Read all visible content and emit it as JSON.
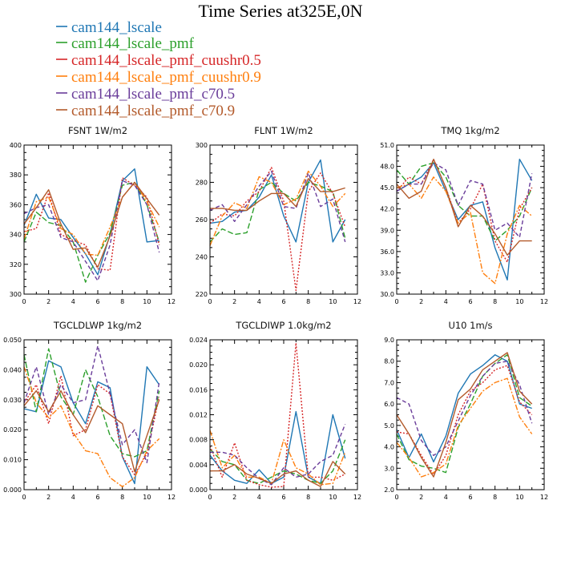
{
  "page_title": "Time Series at325E,0N",
  "legend": [
    {
      "name": "cam144_lscale",
      "color": "#1f77b4"
    },
    {
      "name": "cam144_lscale_pmf",
      "color": "#2ca02c"
    },
    {
      "name": "cam144_lscale_pmf_cuushr0.5",
      "color": "#d62728"
    },
    {
      "name": "cam144_lscale_pmf_cuushr0.9",
      "color": "#ff7f0e"
    },
    {
      "name": "cam144_lscale_pmf_c70.5",
      "color": "#6a3d9a"
    },
    {
      "name": "cam144_lscale_pmf_c70.9",
      "color": "#b35a2b"
    }
  ],
  "chart_data": [
    {
      "type": "line",
      "title": "FSNT   1W/m2",
      "xlim": [
        0,
        12
      ],
      "xticks": [
        "0",
        "2",
        "4",
        "6",
        "8",
        "10",
        "12"
      ],
      "ylim": [
        300,
        400
      ],
      "yticks": [
        "300",
        "320",
        "340",
        "360",
        "380",
        "400"
      ],
      "x": [
        0,
        1,
        2,
        3,
        4,
        5,
        6,
        7,
        8,
        9,
        10,
        11
      ],
      "series": [
        {
          "name": "cam144_lscale",
          "dash": "solid",
          "values": [
            346,
            367,
            351,
            350,
            338,
            327,
            313,
            340,
            376,
            384,
            335,
            336
          ]
        },
        {
          "name": "cam144_lscale_pmf",
          "dash": "longdash",
          "values": [
            335,
            355,
            348,
            346,
            335,
            308,
            326,
            341,
            373,
            375,
            360,
            335
          ]
        },
        {
          "name": "cam144_lscale_pmf_cuushr0.5",
          "dash": "dot",
          "values": [
            342,
            344,
            368,
            340,
            336,
            333,
            317,
            316,
            378,
            373,
            365,
            333
          ]
        },
        {
          "name": "cam144_lscale_pmf_cuushr0.9",
          "dash": "dashdot",
          "values": [
            337,
            362,
            365,
            344,
            340,
            327,
            326,
            345,
            365,
            375,
            362,
            345
          ]
        },
        {
          "name": "cam144_lscale_pmf_c70.5",
          "dash": "dash",
          "values": [
            354,
            358,
            360,
            338,
            335,
            322,
            309,
            333,
            376,
            373,
            360,
            328
          ]
        },
        {
          "name": "cam144_lscale_pmf_c70.9",
          "dash": "solid",
          "values": [
            347,
            358,
            370,
            347,
            330,
            331,
            318,
            339,
            365,
            375,
            364,
            353
          ]
        }
      ]
    },
    {
      "type": "line",
      "title": "FLNT   1W/m2",
      "xlim": [
        0,
        12
      ],
      "xticks": [
        "0",
        "2",
        "4",
        "6",
        "8",
        "10",
        "12"
      ],
      "ylim": [
        220,
        300
      ],
      "yticks": [
        "220",
        "240",
        "260",
        "280",
        "300"
      ],
      "x": [
        0,
        1,
        2,
        3,
        4,
        5,
        6,
        7,
        8,
        9,
        10,
        11
      ],
      "series": [
        {
          "name": "cam144_lscale",
          "dash": "solid",
          "values": [
            258,
            259,
            264,
            265,
            272,
            284,
            262,
            248,
            280,
            292,
            248,
            260
          ]
        },
        {
          "name": "cam144_lscale_pmf",
          "dash": "longdash",
          "values": [
            248,
            255,
            252,
            253,
            276,
            280,
            274,
            270,
            280,
            278,
            275,
            250
          ]
        },
        {
          "name": "cam144_lscale_pmf_cuushr0.5",
          "dash": "dot",
          "values": [
            258,
            263,
            262,
            270,
            275,
            288,
            270,
            222,
            275,
            285,
            274,
            256
          ]
        },
        {
          "name": "cam144_lscale_pmf_cuushr0.9",
          "dash": "dashdot",
          "values": [
            246,
            262,
            269,
            266,
            283,
            280,
            268,
            271,
            286,
            278,
            267,
            274
          ]
        },
        {
          "name": "cam144_lscale_pmf_c70.5",
          "dash": "dash",
          "values": [
            265,
            268,
            259,
            268,
            278,
            286,
            267,
            266,
            285,
            267,
            271,
            248
          ]
        },
        {
          "name": "cam144_lscale_pmf_c70.9",
          "dash": "solid",
          "values": [
            266,
            266,
            265,
            265,
            270,
            274,
            274,
            267,
            282,
            275,
            275,
            277
          ]
        }
      ]
    },
    {
      "type": "line",
      "title": "TMQ   1kg/m2",
      "xlim": [
        0,
        12
      ],
      "xticks": [
        "0",
        "2",
        "4",
        "6",
        "8",
        "10",
        "12"
      ],
      "ylim": [
        30,
        51
      ],
      "yticks": [
        "30.0",
        "33.0",
        "36.0",
        "39.0",
        "42.0",
        "45.0",
        "48.0",
        "51.0"
      ],
      "x": [
        0,
        1,
        2,
        3,
        4,
        5,
        6,
        7,
        8,
        9,
        10,
        11
      ],
      "series": [
        {
          "name": "cam144_lscale",
          "dash": "solid",
          "values": [
            44.5,
            45.5,
            46.5,
            48.5,
            44.5,
            40.5,
            42.5,
            43.0,
            36.5,
            32.0,
            49.0,
            46.0
          ]
        },
        {
          "name": "cam144_lscale_pmf",
          "dash": "longdash",
          "values": [
            47.5,
            45.5,
            48.0,
            48.5,
            46.5,
            42.5,
            41.0,
            41.0,
            37.5,
            39.0,
            41.0,
            45.0
          ]
        },
        {
          "name": "cam144_lscale_pmf_cuushr0.5",
          "dash": "dot",
          "values": [
            44.5,
            46.5,
            45.5,
            49.0,
            45.0,
            40.0,
            42.0,
            45.5,
            37.5,
            34.5,
            42.0,
            45.0
          ]
        },
        {
          "name": "cam144_lscale_pmf_cuushr0.9",
          "dash": "dashdot",
          "values": [
            45.0,
            45.5,
            43.5,
            46.5,
            44.5,
            40.0,
            41.5,
            33.0,
            31.5,
            38.5,
            42.5,
            41.0
          ]
        },
        {
          "name": "cam144_lscale_pmf_c70.5",
          "dash": "dash",
          "values": [
            44.5,
            45.5,
            45.5,
            48.5,
            47.5,
            42.5,
            46.0,
            45.5,
            39.0,
            40.0,
            38.0,
            47.0
          ]
        },
        {
          "name": "cam144_lscale_pmf_c70.9",
          "dash": "solid",
          "values": [
            45.5,
            43.5,
            44.5,
            49.0,
            45.0,
            39.5,
            42.5,
            41.0,
            38.5,
            35.5,
            37.5,
            37.5
          ]
        }
      ]
    },
    {
      "type": "line",
      "title": "TGCLDLWP   1kg/m2",
      "xlim": [
        0,
        12
      ],
      "xticks": [
        "0",
        "2",
        "4",
        "6",
        "8",
        "10",
        "12"
      ],
      "ylim": [
        0,
        0.05
      ],
      "yticks": [
        "0.000",
        "0.010",
        "0.020",
        "0.030",
        "0.040",
        "0.050"
      ],
      "x": [
        0,
        1,
        2,
        3,
        4,
        5,
        6,
        7,
        8,
        9,
        10,
        11
      ],
      "series": [
        {
          "name": "cam144_lscale",
          "dash": "solid",
          "values": [
            0.027,
            0.026,
            0.043,
            0.041,
            0.029,
            0.022,
            0.036,
            0.034,
            0.011,
            0.002,
            0.041,
            0.035
          ]
        },
        {
          "name": "cam144_lscale_pmf",
          "dash": "longdash",
          "values": [
            0.045,
            0.026,
            0.047,
            0.031,
            0.025,
            0.04,
            0.031,
            0.018,
            0.012,
            0.011,
            0.013,
            0.033
          ]
        },
        {
          "name": "cam144_lscale_pmf_cuushr0.5",
          "dash": "dot",
          "values": [
            0.029,
            0.035,
            0.022,
            0.038,
            0.018,
            0.02,
            0.035,
            0.032,
            0.011,
            0.005,
            0.012,
            0.031
          ]
        },
        {
          "name": "cam144_lscale_pmf_cuushr0.9",
          "dash": "dashdot",
          "values": [
            0.041,
            0.029,
            0.024,
            0.028,
            0.019,
            0.013,
            0.012,
            0.004,
            0.001,
            0.004,
            0.013,
            0.017
          ]
        },
        {
          "name": "cam144_lscale_pmf_c70.5",
          "dash": "dash",
          "values": [
            0.029,
            0.041,
            0.025,
            0.035,
            0.029,
            0.03,
            0.048,
            0.032,
            0.015,
            0.02,
            0.009,
            0.036
          ]
        },
        {
          "name": "cam144_lscale_pmf_c70.9",
          "dash": "solid",
          "values": [
            0.028,
            0.033,
            0.026,
            0.033,
            0.025,
            0.019,
            0.028,
            0.025,
            0.022,
            0.006,
            0.018,
            0.03
          ]
        }
      ]
    },
    {
      "type": "line",
      "title": "TGCLDIWP   1.0kg/m2",
      "xlim": [
        0,
        12
      ],
      "xticks": [
        "0",
        "2",
        "4",
        "6",
        "8",
        "10",
        "12"
      ],
      "ylim": [
        0,
        0.024
      ],
      "yticks": [
        "0.000",
        "0.004",
        "0.008",
        "0.012",
        "0.016",
        "0.020",
        "0.024"
      ],
      "x": [
        0,
        1,
        2,
        3,
        4,
        5,
        6,
        7,
        8,
        9,
        10,
        11
      ],
      "series": [
        {
          "name": "cam144_lscale",
          "dash": "solid",
          "values": [
            0.0055,
            0.003,
            0.0015,
            0.001,
            0.0032,
            0.001,
            0.002,
            0.0125,
            0.002,
            0.001,
            0.012,
            0.005
          ]
        },
        {
          "name": "cam144_lscale_pmf",
          "dash": "longdash",
          "values": [
            0.0065,
            0.0045,
            0.004,
            0.0015,
            0.001,
            0.002,
            0.003,
            0.0025,
            0.0015,
            0.001,
            0.003,
            0.008
          ]
        },
        {
          "name": "cam144_lscale_pmf_cuushr0.5",
          "dash": "dot",
          "values": [
            0.007,
            0.002,
            0.0075,
            0.0015,
            0.0008,
            0.0004,
            0.0005,
            0.0235,
            0.002,
            0.002,
            0.0015,
            0.0025
          ]
        },
        {
          "name": "cam144_lscale_pmf_cuushr0.9",
          "dash": "dashdot",
          "values": [
            0.0095,
            0.0035,
            0.0055,
            0.002,
            0.002,
            0.001,
            0.008,
            0.0035,
            0.0025,
            0.0008,
            0.001,
            0.006
          ]
        },
        {
          "name": "cam144_lscale_pmf_c70.5",
          "dash": "dash",
          "values": [
            0.006,
            0.006,
            0.0055,
            0.0035,
            0.0018,
            0.0008,
            0.0035,
            0.002,
            0.0025,
            0.0045,
            0.0055,
            0.0105
          ]
        },
        {
          "name": "cam144_lscale_pmf_c70.9",
          "dash": "solid",
          "values": [
            0.003,
            0.003,
            0.004,
            0.0025,
            0.0018,
            0.001,
            0.0025,
            0.003,
            0.0015,
            0.0005,
            0.0045,
            0.0025
          ]
        }
      ]
    },
    {
      "type": "line",
      "title": "U10   1m/s",
      "xlim": [
        0,
        12
      ],
      "xticks": [
        "0",
        "2",
        "4",
        "6",
        "8",
        "10",
        "12"
      ],
      "ylim": [
        2,
        9
      ],
      "yticks": [
        "2.0",
        "3.0",
        "4.0",
        "5.0",
        "6.0",
        "7.0",
        "8.0",
        "9.0"
      ],
      "x": [
        0,
        1,
        2,
        3,
        4,
        5,
        6,
        7,
        8,
        9,
        10,
        11
      ],
      "series": [
        {
          "name": "cam144_lscale",
          "dash": "solid",
          "values": [
            4.8,
            3.5,
            4.6,
            3.3,
            4.5,
            6.5,
            7.4,
            7.8,
            8.3,
            8.0,
            6.0,
            5.8
          ]
        },
        {
          "name": "cam144_lscale_pmf",
          "dash": "longdash",
          "values": [
            4.6,
            3.4,
            3.1,
            3.0,
            2.8,
            4.9,
            6.0,
            7.3,
            7.9,
            8.3,
            6.3,
            5.9
          ]
        },
        {
          "name": "cam144_lscale_pmf_cuushr0.5",
          "dash": "dot",
          "values": [
            4.7,
            4.6,
            3.6,
            2.7,
            3.6,
            5.5,
            6.6,
            7.0,
            7.6,
            7.8,
            6.1,
            5.5
          ]
        },
        {
          "name": "cam144_lscale_pmf_cuushr0.9",
          "dash": "dashdot",
          "values": [
            4.2,
            3.5,
            2.6,
            2.8,
            3.2,
            5.0,
            5.8,
            6.6,
            7.0,
            7.2,
            5.4,
            4.6
          ]
        },
        {
          "name": "cam144_lscale_pmf_c70.5",
          "dash": "dash",
          "values": [
            6.3,
            6.0,
            4.3,
            3.6,
            4.0,
            5.2,
            6.4,
            7.3,
            7.9,
            8.0,
            6.9,
            5.1
          ]
        },
        {
          "name": "cam144_lscale_pmf_c70.9",
          "dash": "solid",
          "values": [
            5.5,
            4.6,
            3.5,
            2.6,
            4.2,
            6.2,
            6.7,
            7.6,
            8.0,
            8.4,
            6.6,
            6.0
          ]
        }
      ]
    }
  ]
}
